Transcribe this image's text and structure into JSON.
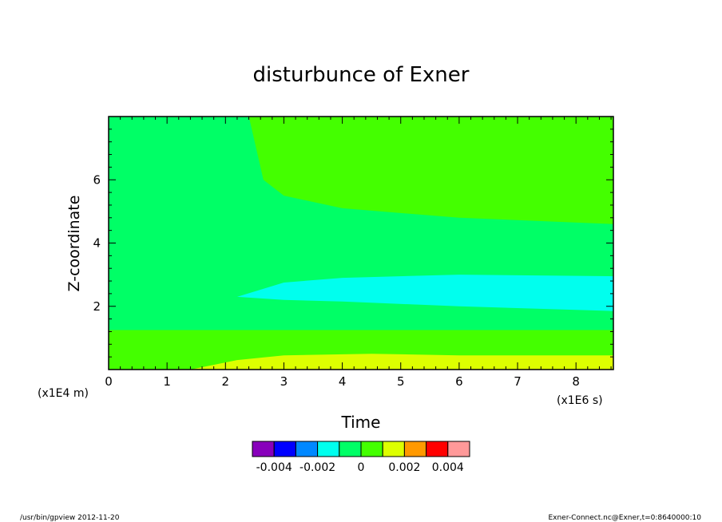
{
  "chart_data": {
    "type": "heatmap",
    "title": "disturbunce of Exner",
    "xlabel": "Time",
    "ylabel": "Z-coordinate",
    "x_unit": "(x1E6 s)",
    "y_unit": "(x1E4 m)",
    "xlim": [
      0,
      8.64
    ],
    "ylim": [
      0,
      8
    ],
    "x_ticks": [
      0,
      1,
      2,
      3,
      4,
      5,
      6,
      7,
      8
    ],
    "y_ticks": [
      2,
      4,
      6
    ],
    "colorbar": {
      "colors": [
        "#8800bb",
        "#0000ff",
        "#0088ff",
        "#00ffee",
        "#00ff66",
        "#44ff00",
        "#ddff00",
        "#ff9900",
        "#ff0000",
        "#ff9999"
      ],
      "labels": [
        "-0.004",
        "-0.002",
        "0",
        "0.002",
        "0.004"
      ],
      "label_positions": [
        -0.004,
        -0.002,
        0,
        0.002,
        0.004
      ],
      "range": [
        -0.005,
        0.005
      ]
    },
    "regions": [
      {
        "name": "background",
        "level": 0.0005,
        "color": "#00ff66"
      },
      {
        "name": "upper",
        "level": 0.0015,
        "color": "#44ff00",
        "boundary": [
          [
            2.4,
            8
          ],
          [
            2.65,
            6
          ],
          [
            3.0,
            5.5
          ],
          [
            4,
            5.1
          ],
          [
            6,
            4.8
          ],
          [
            8.64,
            4.6
          ]
        ]
      },
      {
        "name": "negative-core",
        "level": -0.0015,
        "color": "#00ffee",
        "top": [
          [
            2.2,
            2.3
          ],
          [
            3,
            2.75
          ],
          [
            4,
            2.9
          ],
          [
            6,
            3.0
          ],
          [
            8.64,
            2.95
          ]
        ],
        "bottom": [
          [
            8.64,
            1.85
          ],
          [
            6,
            2.0
          ],
          [
            4,
            2.15
          ],
          [
            3,
            2.2
          ],
          [
            2.2,
            2.3
          ]
        ]
      },
      {
        "name": "lower",
        "level": 0.0015,
        "color": "#44ff00",
        "y_range": [
          0,
          1.25
        ]
      },
      {
        "name": "surface",
        "level": 0.0025,
        "color": "#ddff00",
        "top": [
          [
            1.4,
            0
          ],
          [
            2.2,
            0.3
          ],
          [
            3,
            0.45
          ],
          [
            4.5,
            0.5
          ],
          [
            6,
            0.45
          ],
          [
            8.64,
            0.45
          ]
        ]
      }
    ]
  },
  "footer": {
    "left": "/usr/bin/gpview   2012-11-20",
    "right": "Exner-Connect.nc@Exner,t=0:8640000:10"
  }
}
